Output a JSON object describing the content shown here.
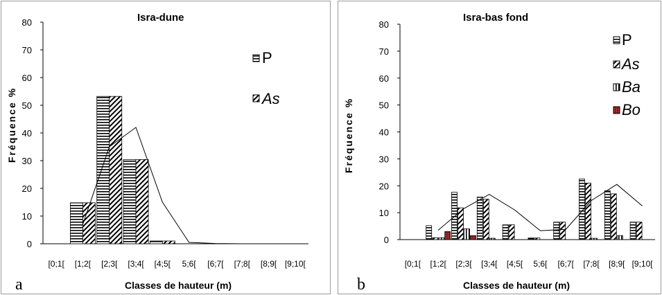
{
  "chart_data": [
    {
      "type": "bar",
      "panel_label": "a",
      "title": "Isra-dune",
      "xlabel": "Classes de hauteur (m)",
      "ylabel": "Fréquence %",
      "ylim": [
        0,
        80
      ],
      "yticks": [
        0,
        10,
        20,
        30,
        40,
        50,
        60,
        70,
        80
      ],
      "categories": [
        "[0;1[",
        "[1;2[",
        "[2;3[",
        "[3;4[",
        "[4;5[",
        "5;6[",
        "[6;7[",
        "[7;8[",
        "[8;9[",
        "[9;10["
      ],
      "series": [
        {
          "name": "P",
          "pattern": "horizontal",
          "values": [
            0,
            14.8,
            53.2,
            30.4,
            1.0,
            0,
            0,
            0,
            0,
            0
          ]
        },
        {
          "name": "As",
          "pattern": "diagonal",
          "values": [
            0,
            14.8,
            53.2,
            30.4,
            1.0,
            0,
            0,
            0,
            0,
            0
          ]
        }
      ],
      "trend_line": [
        null,
        7,
        35,
        42,
        15,
        0.5,
        0.1,
        0,
        0,
        0
      ],
      "legend_position": "top-right",
      "grid": false
    },
    {
      "type": "bar",
      "panel_label": "b",
      "title": "Isra-bas fond",
      "xlabel": "Classes de hauteur (m)",
      "ylabel": "Fréquence %",
      "ylim": [
        0,
        80
      ],
      "yticks": [
        0,
        10,
        20,
        30,
        40,
        50,
        60,
        70,
        80
      ],
      "categories": [
        "[0;1[",
        "[1;2[",
        "[2;3[",
        "[3;4[",
        "[4;5[",
        "5;6[",
        "[6;7[",
        "[7;8[",
        "[8;9[",
        "[9;10["
      ],
      "series": [
        {
          "name": "P",
          "pattern": "horizontal",
          "values": [
            0,
            5.2,
            17.6,
            15.8,
            5.5,
            0.6,
            6.5,
            22.5,
            18.2,
            6.5
          ]
        },
        {
          "name": "As",
          "pattern": "diagonal",
          "values": [
            0,
            0.7,
            11.8,
            15.0,
            5.5,
            0.6,
            6.5,
            21.0,
            17.0,
            6.5
          ]
        },
        {
          "name": "Ba",
          "pattern": "vertical",
          "values": [
            0,
            0.7,
            4.0,
            0.5,
            0,
            0,
            0,
            0.5,
            1.5,
            0
          ]
        },
        {
          "name": "Bo",
          "pattern": "dotted-red",
          "values": [
            0,
            3.0,
            1.5,
            0,
            0,
            0,
            0,
            0,
            0,
            0
          ]
        }
      ],
      "trend_line": [
        null,
        3.5,
        11.5,
        16.8,
        11,
        3.3,
        3.8,
        14.5,
        20.5,
        12.5
      ],
      "legend_position": "right",
      "grid": false
    }
  ]
}
